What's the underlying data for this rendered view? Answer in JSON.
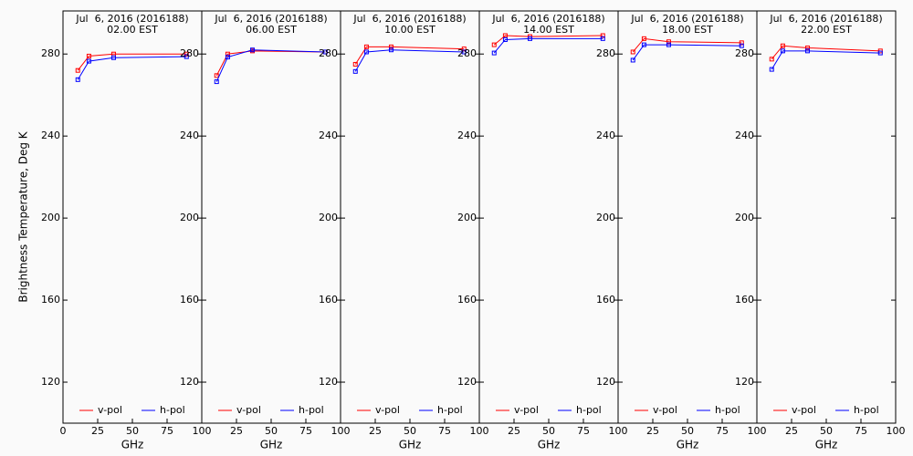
{
  "chart_data": [
    {
      "type": "line",
      "title": "Jul  6, 2016 (2016188)",
      "subtitle": "02.00 EST",
      "xlabel": "GHz",
      "ylabel": "Brightness Temperature, Deg K",
      "x": [
        10.7,
        18.7,
        36.5,
        89
      ],
      "xlim": [
        0,
        100
      ],
      "ylim": [
        100,
        301
      ],
      "xticks": [
        0,
        25,
        50,
        75,
        100
      ],
      "yticks": [
        120,
        160,
        200,
        240,
        280
      ],
      "series": [
        {
          "name": "v-pol",
          "color": "#ff0000",
          "values": [
            272,
            279,
            280,
            280
          ]
        },
        {
          "name": "h-pol",
          "color": "#0000ff",
          "values": [
            267.5,
            276.5,
            278.2,
            278.7
          ]
        }
      ]
    },
    {
      "type": "line",
      "title": "Jul  6, 2016 (2016188)",
      "subtitle": "06.00 EST",
      "xlabel": "GHz",
      "x": [
        10.7,
        18.7,
        36.5,
        89
      ],
      "xlim": [
        0,
        100
      ],
      "ylim": [
        100,
        301
      ],
      "xticks": [
        25,
        50,
        75,
        100
      ],
      "yticks": [
        120,
        160,
        200,
        240,
        280
      ],
      "series": [
        {
          "name": "v-pol",
          "color": "#ff0000",
          "values": [
            269.5,
            280,
            281.5,
            281
          ]
        },
        {
          "name": "h-pol",
          "color": "#0000ff",
          "values": [
            266.5,
            278.5,
            282,
            281
          ]
        }
      ]
    },
    {
      "type": "line",
      "title": "Jul  6, 2016 (2016188)",
      "subtitle": "10.00 EST",
      "xlabel": "GHz",
      "x": [
        10.7,
        18.7,
        36.5,
        89
      ],
      "xlim": [
        0,
        100
      ],
      "ylim": [
        100,
        301
      ],
      "xticks": [
        25,
        50,
        75,
        100
      ],
      "yticks": [
        120,
        160,
        200,
        240,
        280
      ],
      "series": [
        {
          "name": "v-pol",
          "color": "#ff0000",
          "values": [
            275,
            283.5,
            283.5,
            282.5
          ]
        },
        {
          "name": "h-pol",
          "color": "#0000ff",
          "values": [
            271.5,
            281,
            282,
            281
          ]
        }
      ]
    },
    {
      "type": "line",
      "title": "Jul  6, 2016 (2016188)",
      "subtitle": "14.00 EST",
      "xlabel": "GHz",
      "x": [
        10.7,
        18.7,
        36.5,
        89
      ],
      "xlim": [
        0,
        100
      ],
      "ylim": [
        100,
        301
      ],
      "xticks": [
        25,
        50,
        75,
        100
      ],
      "yticks": [
        120,
        160,
        200,
        240,
        280
      ],
      "series": [
        {
          "name": "v-pol",
          "color": "#ff0000",
          "values": [
            284.5,
            289,
            288.5,
            289
          ]
        },
        {
          "name": "h-pol",
          "color": "#0000ff",
          "values": [
            280.5,
            287,
            287.5,
            287.5
          ]
        }
      ]
    },
    {
      "type": "line",
      "title": "Jul  6, 2016 (2016188)",
      "subtitle": "18.00 EST",
      "xlabel": "GHz",
      "x": [
        10.7,
        18.7,
        36.5,
        89
      ],
      "xlim": [
        0,
        100
      ],
      "ylim": [
        100,
        301
      ],
      "xticks": [
        25,
        50,
        75,
        100
      ],
      "yticks": [
        120,
        160,
        200,
        240,
        280
      ],
      "series": [
        {
          "name": "v-pol",
          "color": "#ff0000",
          "values": [
            281,
            287.5,
            286,
            285.5
          ]
        },
        {
          "name": "h-pol",
          "color": "#0000ff",
          "values": [
            277,
            284.5,
            284.5,
            284
          ]
        }
      ]
    },
    {
      "type": "line",
      "title": "Jul  6, 2016 (2016188)",
      "subtitle": "22.00 EST",
      "xlabel": "GHz",
      "x": [
        10.7,
        18.7,
        36.5,
        89
      ],
      "xlim": [
        0,
        100
      ],
      "ylim": [
        100,
        301
      ],
      "xticks": [
        25,
        50,
        75,
        100
      ],
      "yticks": [
        120,
        160,
        200,
        240,
        280
      ],
      "series": [
        {
          "name": "v-pol",
          "color": "#ff0000",
          "values": [
            277.5,
            284,
            283,
            281.5
          ]
        },
        {
          "name": "h-pol",
          "color": "#0000ff",
          "values": [
            272.5,
            281.5,
            281.5,
            280.5
          ]
        }
      ]
    }
  ]
}
